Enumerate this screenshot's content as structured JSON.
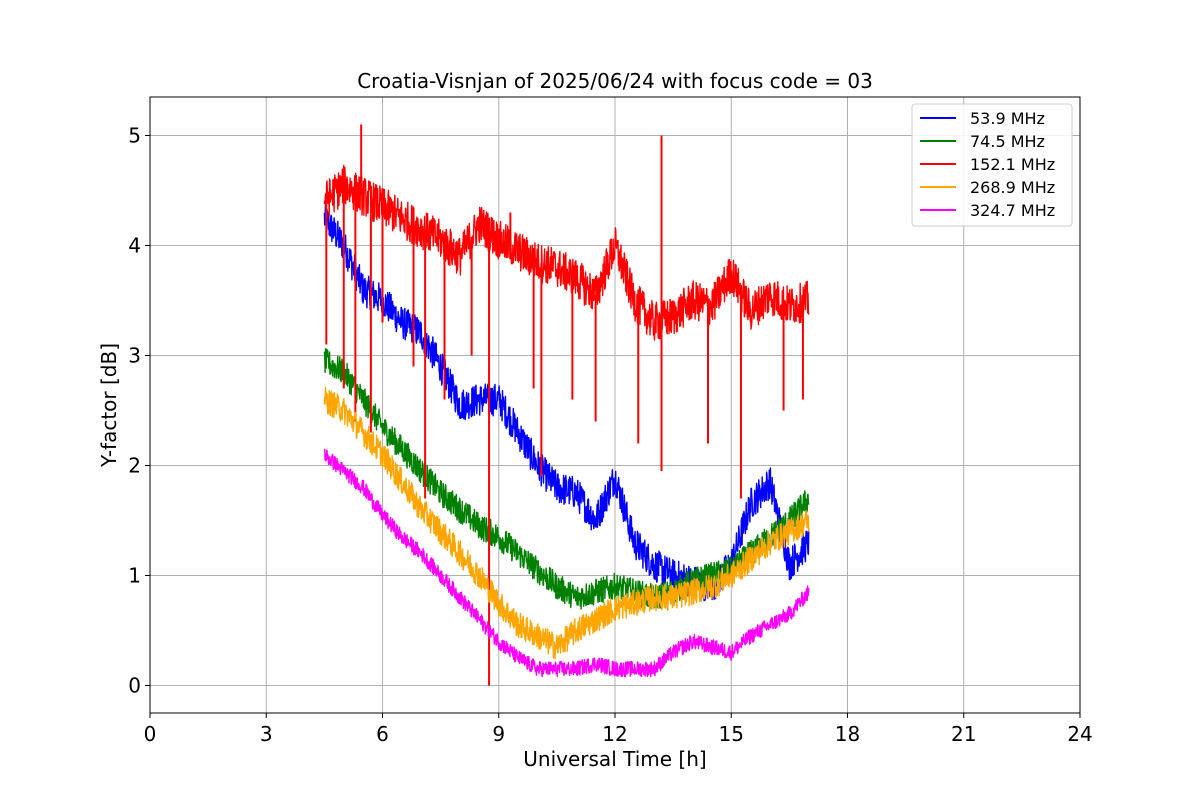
{
  "chart_data": {
    "type": "line",
    "title": "Croatia-Visnjan of 2025/06/24 with focus code = 03",
    "xlabel": "Universal Time [h]",
    "ylabel": "Y-factor [dB]",
    "xlim": [
      0,
      24
    ],
    "ylim": [
      -0.25,
      5.35
    ],
    "xticks": [
      0,
      3,
      6,
      9,
      12,
      15,
      18,
      21,
      24
    ],
    "xtick_labels": [
      "0",
      "3",
      "6",
      "9",
      "12",
      "15",
      "18",
      "21",
      "24"
    ],
    "yticks": [
      0,
      1,
      2,
      3,
      4,
      5
    ],
    "ytick_labels": [
      "0",
      "1",
      "2",
      "3",
      "4",
      "5"
    ],
    "grid": true,
    "legend_position": "top-right",
    "series": [
      {
        "name": "53.9 MHz",
        "label": "  53.9 MHz",
        "color": "#0000ff",
        "noise": 0.15,
        "x": [
          4.5,
          5.0,
          5.5,
          6.0,
          6.5,
          7.0,
          7.5,
          8.0,
          8.5,
          9.0,
          9.5,
          10.0,
          10.5,
          11.0,
          11.5,
          12.0,
          12.5,
          13.0,
          13.5,
          14.0,
          14.5,
          15.0,
          15.5,
          16.0,
          16.5,
          17.0
        ],
        "y": [
          4.25,
          4.0,
          3.6,
          3.5,
          3.3,
          3.2,
          2.9,
          2.55,
          2.6,
          2.6,
          2.3,
          2.0,
          1.8,
          1.75,
          1.5,
          1.9,
          1.3,
          1.1,
          1.0,
          0.95,
          0.9,
          1.1,
          1.65,
          1.85,
          1.1,
          1.3
        ]
      },
      {
        "name": "74.5 MHz",
        "label": "  74.5 MHz",
        "color": "#008000",
        "noise": 0.12,
        "x": [
          4.5,
          5.0,
          5.5,
          6.0,
          6.5,
          7.0,
          7.5,
          8.0,
          8.5,
          9.0,
          9.5,
          10.0,
          10.5,
          11.0,
          11.5,
          12.0,
          12.5,
          13.0,
          13.5,
          14.0,
          14.5,
          15.0,
          15.5,
          16.0,
          16.5,
          17.0
        ],
        "y": [
          2.95,
          2.85,
          2.6,
          2.35,
          2.15,
          1.95,
          1.75,
          1.6,
          1.45,
          1.35,
          1.2,
          1.05,
          0.9,
          0.8,
          0.85,
          0.9,
          0.85,
          0.8,
          0.85,
          0.95,
          1.0,
          1.05,
          1.2,
          1.35,
          1.5,
          1.7
        ]
      },
      {
        "name": "152.1 MHz",
        "label": "152.1 MHz",
        "color": "#ff0000",
        "noise": 0.18,
        "x": [
          4.5,
          5.0,
          5.5,
          6.0,
          6.5,
          7.0,
          7.5,
          8.0,
          8.5,
          9.0,
          9.5,
          10.0,
          10.5,
          11.0,
          11.5,
          12.0,
          12.5,
          13.0,
          13.5,
          14.0,
          14.5,
          15.0,
          15.5,
          16.0,
          16.5,
          17.0
        ],
        "y": [
          4.4,
          4.55,
          4.45,
          4.35,
          4.25,
          4.15,
          4.05,
          3.9,
          4.2,
          4.05,
          3.95,
          3.85,
          3.8,
          3.7,
          3.55,
          4.0,
          3.5,
          3.3,
          3.35,
          3.5,
          3.45,
          3.75,
          3.4,
          3.55,
          3.45,
          3.5
        ],
        "spikes_down": [
          [
            4.55,
            3.1
          ],
          [
            5.0,
            2.7
          ],
          [
            5.3,
            2.4
          ],
          [
            5.7,
            2.3
          ],
          [
            6.0,
            3.3
          ],
          [
            6.8,
            2.9
          ],
          [
            7.1,
            1.7
          ],
          [
            7.6,
            2.6
          ],
          [
            8.3,
            3.0
          ],
          [
            8.75,
            0.0
          ],
          [
            9.9,
            2.7
          ],
          [
            10.1,
            1.9
          ],
          [
            10.9,
            2.6
          ],
          [
            11.5,
            2.4
          ],
          [
            12.6,
            2.2
          ],
          [
            13.2,
            1.95
          ],
          [
            14.4,
            2.2
          ],
          [
            15.25,
            1.7
          ],
          [
            16.35,
            2.5
          ],
          [
            16.85,
            2.6
          ]
        ],
        "spikes_up": [
          [
            5.45,
            5.1
          ],
          [
            13.2,
            5.0
          ],
          [
            9.3,
            4.3
          ]
        ]
      },
      {
        "name": "268.9 MHz",
        "label": "268.9 MHz",
        "color": "#ffa500",
        "noise": 0.12,
        "x": [
          4.5,
          5.0,
          5.5,
          6.0,
          6.5,
          7.0,
          7.5,
          8.0,
          8.5,
          9.0,
          9.5,
          10.0,
          10.5,
          11.0,
          11.5,
          12.0,
          12.5,
          13.0,
          13.5,
          14.0,
          14.5,
          15.0,
          15.5,
          16.0,
          16.5,
          17.0
        ],
        "y": [
          2.6,
          2.5,
          2.3,
          2.1,
          1.85,
          1.6,
          1.4,
          1.2,
          1.0,
          0.75,
          0.55,
          0.45,
          0.35,
          0.5,
          0.6,
          0.7,
          0.75,
          0.8,
          0.8,
          0.85,
          0.9,
          1.0,
          1.15,
          1.3,
          1.4,
          1.5
        ]
      },
      {
        "name": "324.7 MHz",
        "label": "324.7 MHz",
        "color": "#ff00ff",
        "noise": 0.07,
        "x": [
          4.5,
          5.0,
          5.5,
          6.0,
          6.5,
          7.0,
          7.5,
          8.0,
          8.5,
          9.0,
          9.5,
          10.0,
          10.5,
          11.0,
          11.5,
          12.0,
          12.5,
          13.0,
          13.5,
          14.0,
          14.5,
          15.0,
          15.5,
          16.0,
          16.5,
          17.0
        ],
        "y": [
          2.1,
          1.95,
          1.8,
          1.55,
          1.35,
          1.2,
          1.0,
          0.8,
          0.6,
          0.4,
          0.25,
          0.15,
          0.15,
          0.15,
          0.2,
          0.15,
          0.15,
          0.15,
          0.3,
          0.4,
          0.35,
          0.3,
          0.45,
          0.55,
          0.65,
          0.85
        ]
      }
    ]
  }
}
